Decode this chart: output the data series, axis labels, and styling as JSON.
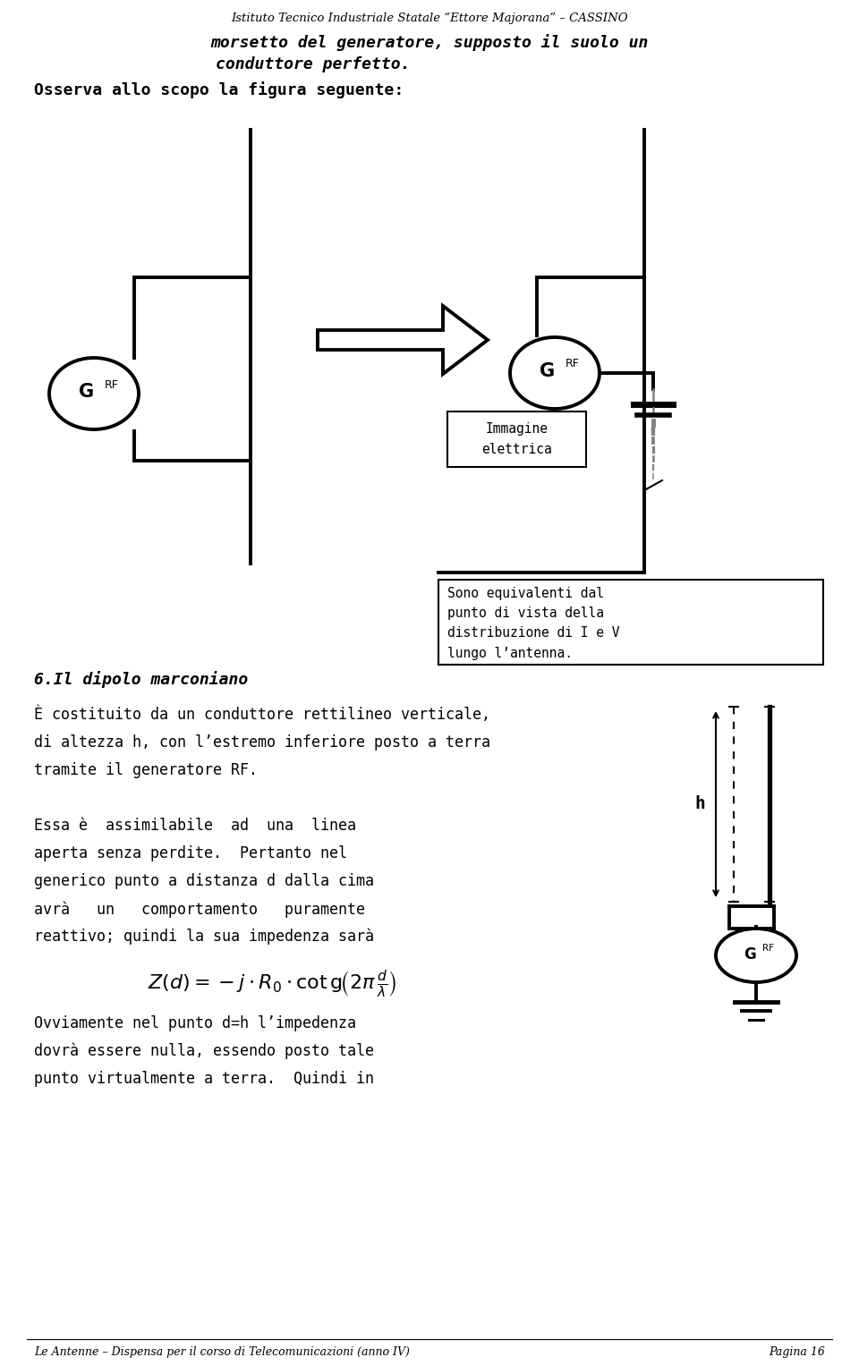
{
  "bg_color": "#ffffff",
  "title_text": "Istituto Tecnico Industriale Statale “Ettore Majorana” – CASSINO",
  "line1": "morsetto del generatore, supposto il suolo un",
  "line2": "conduttore perfetto.",
  "line3": "Osserva allo scopo la figura seguente:",
  "section_label": "6.Il dipolo marconiano",
  "para1": "È costituito da un conduttore rettilineo verticale,",
  "para2": "di altezza h, con l’estremo inferiore posto a terra",
  "para3": "tramite il generatore RF.",
  "para4": "Essa è  assimilabile  ad  una  linea",
  "para5": "aperta senza perdite.  Pertanto nel",
  "para6": "generico punto a distanza d dalla cima",
  "para7": "avrà   un   comportamento   puramente",
  "para8": "reattivo; quindi la sua impedenza sarà",
  "para9": "Ovviamente nel punto d=h l’impedenza",
  "para10": "dovrà essere nulla, essendo posto tale",
  "para11": "punto virtualmente a terra.  Quindi in",
  "box_text": "Sono equivalenti dal\npunto di vista della\ndistribuzione di I e V\nlungo l’antenna.",
  "immagine_text": "Immagine\nelettrica",
  "footer_left": "Le Antenne – Dispensa per il corso di Telecomunicazioni (anno IV)",
  "footer_right": "Pagina 16"
}
